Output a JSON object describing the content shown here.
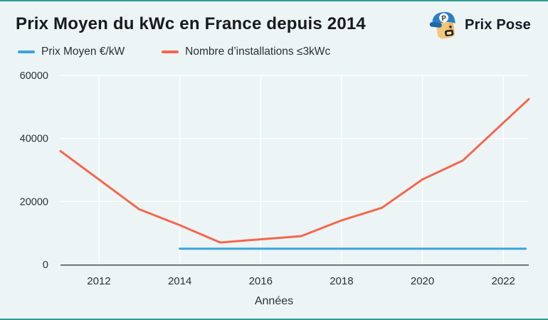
{
  "page": {
    "background": "#edf4f6",
    "accent_border_color": "#2f9e91"
  },
  "header": {
    "title": "Prix Moyen du kWc en France depuis 2014",
    "brand": {
      "name": "Prix Pose",
      "icon": "prixpose-mascot-icon"
    }
  },
  "legend": [
    {
      "label": "Prix Moyen €/kW",
      "color": "#38a5dc"
    },
    {
      "label": "Nombre d’installations ≤3kWc",
      "color": "#f4674c"
    }
  ],
  "chart_data": {
    "type": "line",
    "title": "Prix Moyen du kWc en France depuis 2014",
    "xlabel": "Années",
    "ylabel": "",
    "xlim": [
      2011.05,
      2022.63
    ],
    "ylim": [
      0,
      60000
    ],
    "xticks": [
      2012,
      2014,
      2016,
      2018,
      2020,
      2022
    ],
    "yticks": [
      0,
      20000,
      40000,
      60000
    ],
    "grid": true,
    "legend_position": "top-left",
    "series": [
      {
        "name": "Prix Moyen €/kW",
        "color": "#38a5dc",
        "x": [
          2014,
          2022.55
        ],
        "values": [
          5000,
          5000
        ]
      },
      {
        "name": "Nombre d’installations ≤3kWc",
        "color": "#f4674c",
        "x": [
          2011.05,
          2013,
          2014,
          2015,
          2016,
          2017,
          2018,
          2019,
          2020,
          2021,
          2022.63
        ],
        "values": [
          36000,
          17500,
          12500,
          7000,
          8000,
          9000,
          14000,
          18000,
          27000,
          33000,
          52500
        ]
      }
    ]
  }
}
